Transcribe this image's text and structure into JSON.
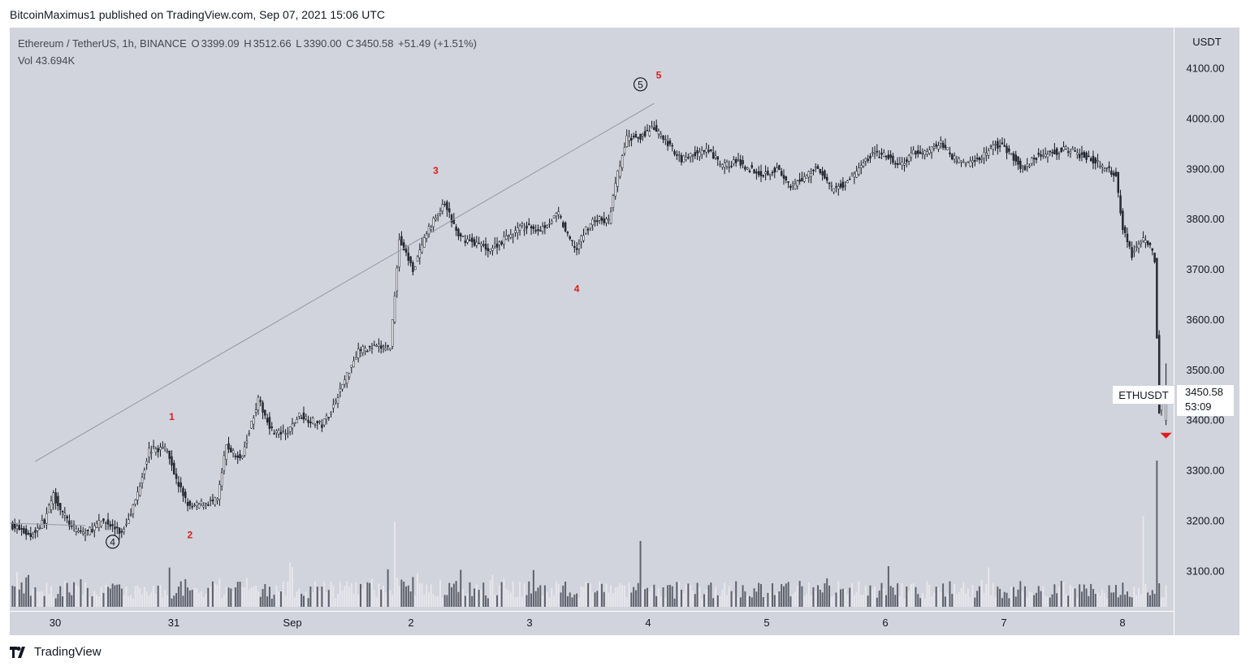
{
  "header": {
    "publisher": "BitcoinMaximus1",
    "published_text": "published on TradingView.com, Sep 07, 2021 15:06 UTC"
  },
  "legend": {
    "pair": "Ethereum / TetherUS, 1h, BINANCE",
    "o_label": "O",
    "o_value": "3399.09",
    "h_label": "H",
    "h_value": "3512.66",
    "l_label": "L",
    "l_value": "3390.00",
    "c_label": "C",
    "c_value": "3450.58",
    "change": "+51.49 (+1.51%)",
    "vol_label": "Vol",
    "vol_value": "43.694K"
  },
  "price_tag": {
    "symbol": "ETHUSDT",
    "price": "3450.58",
    "countdown": "53:09"
  },
  "footer": {
    "brand": "TradingView"
  },
  "colors": {
    "background": "#d1d4dc",
    "up_fill": "#ffffff",
    "down_fill": "#2a2e39",
    "wick": "#131722",
    "vol_up": "#e6e7ec",
    "vol_down": "#5d606b",
    "wave_label": "#e01b1b",
    "trendline": "#9598a1",
    "signal": "#e01b1b"
  },
  "chart_data": {
    "type": "candlestick",
    "y_unit": "USDT",
    "ylim": [
      3020,
      4230
    ],
    "y_ticks": [
      "4100.00",
      "4000.00",
      "3900.00",
      "3800.00",
      "3700.00",
      "3600.00",
      "3500.00",
      "3400.00",
      "3300.00",
      "3200.00",
      "3100.00"
    ],
    "x_ticks": [
      "30",
      "31",
      "Sep",
      "2",
      "3",
      "4",
      "5",
      "6",
      "7",
      "8"
    ],
    "wave_labels": [
      {
        "text": "1",
        "price": 3400
      },
      {
        "text": "2",
        "price": 3165
      },
      {
        "text": "3",
        "price": 3890
      },
      {
        "text": "4",
        "price": 3655
      },
      {
        "text": "5",
        "price": 4080
      }
    ],
    "circled_labels": [
      {
        "text": "4",
        "price": 3158
      },
      {
        "text": "5",
        "price": 4068
      }
    ],
    "keypoints": [
      [
        0,
        3190
      ],
      [
        8,
        3170
      ],
      [
        14,
        3200
      ],
      [
        18,
        3250
      ],
      [
        26,
        3185
      ],
      [
        32,
        3175
      ],
      [
        40,
        3200
      ],
      [
        48,
        3175
      ],
      [
        54,
        3240
      ],
      [
        60,
        3340
      ],
      [
        68,
        3345
      ],
      [
        72,
        3280
      ],
      [
        78,
        3225
      ],
      [
        84,
        3235
      ],
      [
        90,
        3240
      ],
      [
        94,
        3350
      ],
      [
        100,
        3320
      ],
      [
        108,
        3440
      ],
      [
        114,
        3380
      ],
      [
        120,
        3370
      ],
      [
        126,
        3410
      ],
      [
        136,
        3390
      ],
      [
        140,
        3420
      ],
      [
        146,
        3480
      ],
      [
        152,
        3540
      ],
      [
        160,
        3545
      ],
      [
        166,
        3545
      ],
      [
        170,
        3760
      ],
      [
        176,
        3700
      ],
      [
        184,
        3790
      ],
      [
        190,
        3830
      ],
      [
        196,
        3765
      ],
      [
        202,
        3755
      ],
      [
        210,
        3740
      ],
      [
        216,
        3760
      ],
      [
        224,
        3785
      ],
      [
        232,
        3780
      ],
      [
        240,
        3810
      ],
      [
        244,
        3765
      ],
      [
        248,
        3740
      ],
      [
        252,
        3780
      ],
      [
        256,
        3800
      ],
      [
        262,
        3795
      ],
      [
        266,
        3890
      ],
      [
        270,
        3960
      ],
      [
        276,
        3965
      ],
      [
        282,
        3980
      ],
      [
        288,
        3950
      ],
      [
        294,
        3920
      ],
      [
        300,
        3930
      ],
      [
        306,
        3935
      ],
      [
        312,
        3905
      ],
      [
        318,
        3915
      ],
      [
        324,
        3900
      ],
      [
        330,
        3890
      ],
      [
        336,
        3900
      ],
      [
        342,
        3860
      ],
      [
        348,
        3885
      ],
      [
        354,
        3905
      ],
      [
        360,
        3860
      ],
      [
        366,
        3870
      ],
      [
        372,
        3900
      ],
      [
        378,
        3930
      ],
      [
        384,
        3925
      ],
      [
        390,
        3905
      ],
      [
        396,
        3930
      ],
      [
        402,
        3935
      ],
      [
        408,
        3950
      ],
      [
        414,
        3920
      ],
      [
        420,
        3910
      ],
      [
        426,
        3925
      ],
      [
        432,
        3950
      ],
      [
        438,
        3935
      ],
      [
        444,
        3900
      ],
      [
        450,
        3925
      ],
      [
        456,
        3930
      ],
      [
        462,
        3940
      ],
      [
        468,
        3930
      ],
      [
        474,
        3920
      ],
      [
        480,
        3900
      ],
      [
        485,
        3890
      ],
      [
        488,
        3780
      ],
      [
        492,
        3730
      ],
      [
        496,
        3760
      ],
      [
        500,
        3745
      ],
      [
        502,
        3720
      ],
      [
        504,
        3420
      ],
      [
        507,
        3450
      ]
    ],
    "volume_spikes": [
      {
        "index": 503,
        "scale": 1.0
      },
      {
        "index": 497,
        "scale": 0.62
      },
      {
        "index": 168,
        "scale": 0.58
      },
      {
        "index": 276,
        "scale": 0.45
      }
    ],
    "last": {
      "open": 3399.09,
      "high": 3512.66,
      "low": 3390.0,
      "close": 3450.58
    }
  }
}
